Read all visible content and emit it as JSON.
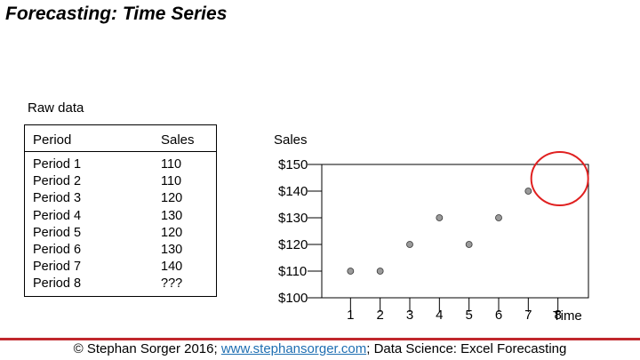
{
  "title": "Forecasting: Time Series",
  "raw_label": "Raw data",
  "table": {
    "headers": [
      "Period",
      "Sales"
    ],
    "rows": [
      [
        "Period 1",
        "110"
      ],
      [
        "Period 2",
        "110"
      ],
      [
        "Period 3",
        "120"
      ],
      [
        "Period 4",
        "130"
      ],
      [
        "Period 5",
        "120"
      ],
      [
        "Period 6",
        "130"
      ],
      [
        "Period 7",
        "140"
      ],
      [
        "Period 8",
        "???"
      ]
    ]
  },
  "chart_data": {
    "type": "scatter",
    "title": "",
    "ylabel": "Sales",
    "xlabel": "Time",
    "x": [
      1,
      2,
      3,
      4,
      5,
      6,
      7
    ],
    "y": [
      110,
      110,
      120,
      130,
      120,
      130,
      140
    ],
    "x_ticks": [
      "1",
      "2",
      "3",
      "4",
      "5",
      "6",
      "7",
      "8"
    ],
    "y_ticks": [
      "$100",
      "$110",
      "$120",
      "$130",
      "$140",
      "$150"
    ],
    "ylim": [
      100,
      150
    ],
    "xlim": [
      0,
      9
    ],
    "grid": false,
    "highlight": {
      "x": 8,
      "y": 145,
      "shape": "circle",
      "color": "#e02020"
    },
    "marker_color": "#9a9a9a"
  },
  "footer": {
    "prefix": "© Stephan Sorger 2016; ",
    "link": "www.stephansorger.com",
    "suffix": "; Data Science: Excel Forecasting",
    "rule_color": "#c0282d"
  }
}
